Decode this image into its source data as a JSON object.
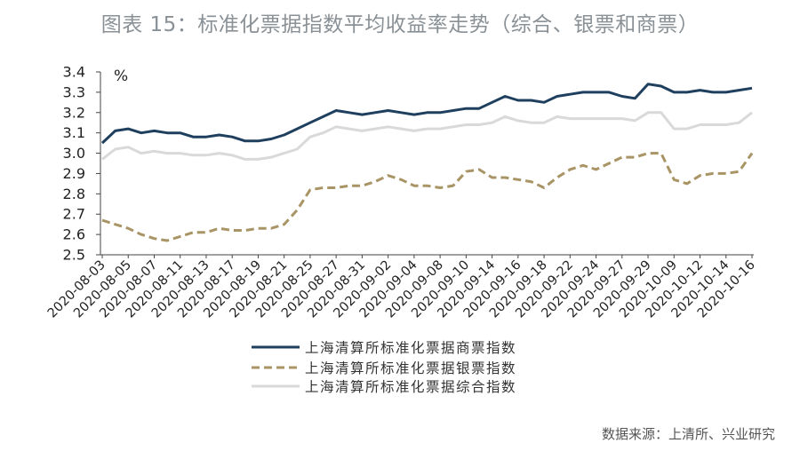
{
  "chart_data": {
    "type": "line",
    "title": "图表 15：标准化票据指数平均收益率走势（综合、银票和商票）",
    "unit": "%",
    "ylim": [
      2.5,
      3.4
    ],
    "yticks": [
      "3.4",
      "3.3",
      "3.2",
      "3.1",
      "3.0",
      "2.9",
      "2.8",
      "2.7",
      "2.6",
      "2.5"
    ],
    "grid": false,
    "legend_position": "bottom",
    "x_labels": [
      "2020-08-03",
      "2020-08-05",
      "2020-08-07",
      "2020-08-11",
      "2020-08-13",
      "2020-08-17",
      "2020-08-19",
      "2020-08-21",
      "2020-08-25",
      "2020-08-27",
      "2020-08-31",
      "2020-09-02",
      "2020-09-04",
      "2020-09-08",
      "2020-09-10",
      "2020-09-14",
      "2020-09-16",
      "2020-09-18",
      "2020-09-22",
      "2020-09-24",
      "2020-09-27",
      "2020-09-29",
      "2020-10-09",
      "2020-10-12",
      "2020-10-14",
      "2020-10-16"
    ],
    "series": [
      {
        "name": "上海清算所标准化票据商票指数",
        "color": "#1f3f5f",
        "dash": "solid",
        "values": [
          3.05,
          3.11,
          3.12,
          3.1,
          3.11,
          3.1,
          3.1,
          3.08,
          3.08,
          3.09,
          3.08,
          3.06,
          3.06,
          3.07,
          3.09,
          3.12,
          3.15,
          3.18,
          3.21,
          3.2,
          3.19,
          3.2,
          3.21,
          3.2,
          3.19,
          3.2,
          3.2,
          3.21,
          3.22,
          3.22,
          3.25,
          3.28,
          3.26,
          3.26,
          3.25,
          3.28,
          3.29,
          3.3,
          3.3,
          3.3,
          3.28,
          3.27,
          3.34,
          3.33,
          3.3,
          3.3,
          3.31,
          3.3,
          3.3,
          3.31,
          3.32
        ]
      },
      {
        "name": "上海清算所标准化票据银票指数",
        "color": "#a89464",
        "dash": "dashed",
        "values": [
          2.67,
          2.65,
          2.63,
          2.6,
          2.58,
          2.57,
          2.59,
          2.61,
          2.61,
          2.63,
          2.62,
          2.62,
          2.63,
          2.63,
          2.65,
          2.72,
          2.82,
          2.83,
          2.83,
          2.84,
          2.84,
          2.86,
          2.89,
          2.87,
          2.84,
          2.84,
          2.83,
          2.84,
          2.91,
          2.92,
          2.88,
          2.88,
          2.87,
          2.86,
          2.83,
          2.88,
          2.92,
          2.94,
          2.92,
          2.95,
          2.98,
          2.98,
          3.0,
          3.0,
          2.87,
          2.85,
          2.89,
          2.9,
          2.9,
          2.91,
          3.0
        ]
      },
      {
        "name": "上海清算所标准化票据综合指数",
        "color": "#d9d9d9",
        "dash": "solid",
        "values": [
          2.97,
          3.02,
          3.03,
          3.0,
          3.01,
          3.0,
          3.0,
          2.99,
          2.99,
          3.0,
          2.99,
          2.97,
          2.97,
          2.98,
          3.0,
          3.02,
          3.08,
          3.1,
          3.13,
          3.12,
          3.11,
          3.12,
          3.13,
          3.12,
          3.11,
          3.12,
          3.12,
          3.13,
          3.14,
          3.14,
          3.15,
          3.18,
          3.16,
          3.15,
          3.15,
          3.18,
          3.17,
          3.17,
          3.17,
          3.17,
          3.17,
          3.16,
          3.2,
          3.2,
          3.12,
          3.12,
          3.14,
          3.14,
          3.14,
          3.15,
          3.2
        ]
      }
    ]
  },
  "source_note": "数据来源：上清所、兴业研究"
}
